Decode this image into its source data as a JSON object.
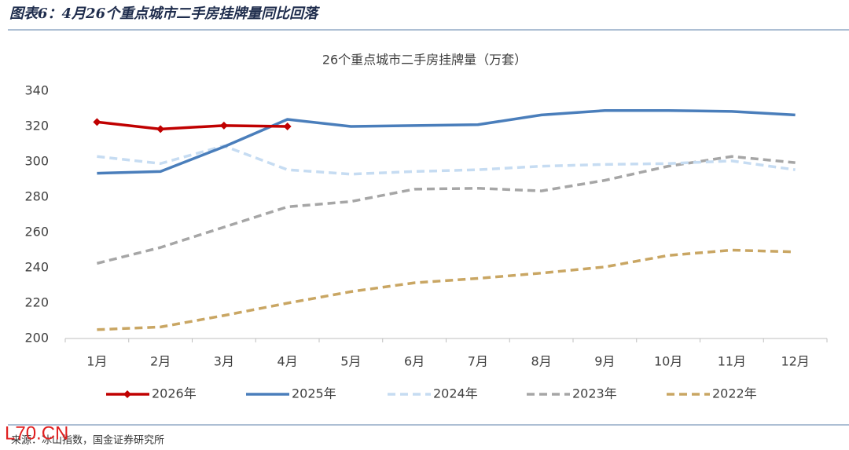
{
  "header": {
    "title": "图表6：4月26个重点城市二手房挂牌量同比回落"
  },
  "chart_data": {
    "type": "line",
    "title": "26个重点城市二手房挂牌量（万套）",
    "categories": [
      "1月",
      "2月",
      "3月",
      "4月",
      "5月",
      "6月",
      "7月",
      "8月",
      "9月",
      "10月",
      "11月",
      "12月"
    ],
    "series": [
      {
        "name": "2026年",
        "color": "#c00000",
        "marker": "diamond",
        "dashed": false,
        "values": [
          322.5,
          318.5,
          320.5,
          320,
          null,
          null,
          null,
          null,
          null,
          null,
          null,
          null
        ]
      },
      {
        "name": "2025年",
        "color": "#4a7ebb",
        "dashed": false,
        "values": [
          293.5,
          294.5,
          308.5,
          324,
          320,
          320.5,
          321,
          326.5,
          329,
          329,
          328.5,
          326.5
        ]
      },
      {
        "name": "2024年",
        "color": "#c6dcf2",
        "dashed": true,
        "values": [
          303,
          299,
          309,
          295.5,
          293,
          294.5,
          295.5,
          297.5,
          298.5,
          299,
          300.5,
          295.5
        ]
      },
      {
        "name": "2023年",
        "color": "#a6a6a6",
        "dashed": true,
        "values": [
          242.5,
          251.5,
          263,
          274.5,
          277.5,
          284.5,
          285,
          283.5,
          289.5,
          297.5,
          303,
          299.5
        ]
      },
      {
        "name": "2022年",
        "color": "#c9a663",
        "dashed": true,
        "values": [
          205,
          206.5,
          213,
          220,
          226.5,
          231.5,
          234,
          237,
          240.5,
          247,
          250,
          249
        ]
      }
    ],
    "ylim": [
      200,
      340
    ],
    "yticks": [
      200,
      220,
      240,
      260,
      280,
      300,
      320,
      340
    ],
    "grid": false,
    "legend": "bottom"
  },
  "source": {
    "text": "来源：冰山指数，国金证券研究所",
    "watermark": "L70.CN"
  }
}
